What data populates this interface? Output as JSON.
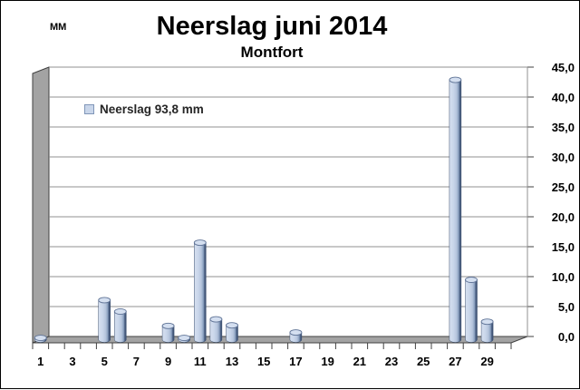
{
  "header": {
    "unit_label": "MM",
    "title": "Neerslag juni 2014",
    "subtitle": "Montfort"
  },
  "legend": {
    "label": "Neerslag 93,8 mm",
    "swatch_color": "#c9d6ea",
    "swatch_border": "#8096b8"
  },
  "chart_data": {
    "type": "bar",
    "style": "3d-cylinder",
    "title": "Neerslag juni 2014",
    "subtitle": "Montfort",
    "unit": "mm",
    "legend_entry": "Neerslag 93,8 mm",
    "total_mm": "93,8",
    "x": [
      1,
      2,
      3,
      4,
      5,
      6,
      7,
      8,
      9,
      10,
      11,
      12,
      13,
      14,
      15,
      16,
      17,
      18,
      19,
      20,
      21,
      22,
      23,
      24,
      25,
      26,
      27,
      28,
      29,
      30
    ],
    "values": [
      0.3,
      0,
      0,
      0,
      6.6,
      4.7,
      0,
      0,
      2.3,
      0.3,
      16.2,
      3.4,
      2.4,
      0,
      0,
      0,
      1.2,
      0,
      0,
      0,
      0,
      0,
      0,
      0,
      0,
      0,
      43.4,
      10.0,
      3.0,
      0
    ],
    "x_tick_labels": [
      "1",
      "3",
      "5",
      "7",
      "9",
      "11",
      "13",
      "15",
      "17",
      "19",
      "21",
      "23",
      "25",
      "27",
      "29"
    ],
    "y_tick_labels": [
      "0,0",
      "5,0",
      "10,0",
      "15,0",
      "20,0",
      "25,0",
      "30,0",
      "35,0",
      "40,0",
      "45,0"
    ],
    "ylim": [
      0,
      45
    ],
    "y_step": 5,
    "grid": true,
    "legend_position": "top-left",
    "colors": {
      "bar_light": "#d6e0f0",
      "bar_mid": "#c9d6ea",
      "bar_dark": "#3a4d6e",
      "bar_cap": "#d4dff0",
      "wall": "#a3a3a3",
      "wall_edge": "#404040",
      "gridline": "#909090",
      "text": "#000000"
    }
  }
}
